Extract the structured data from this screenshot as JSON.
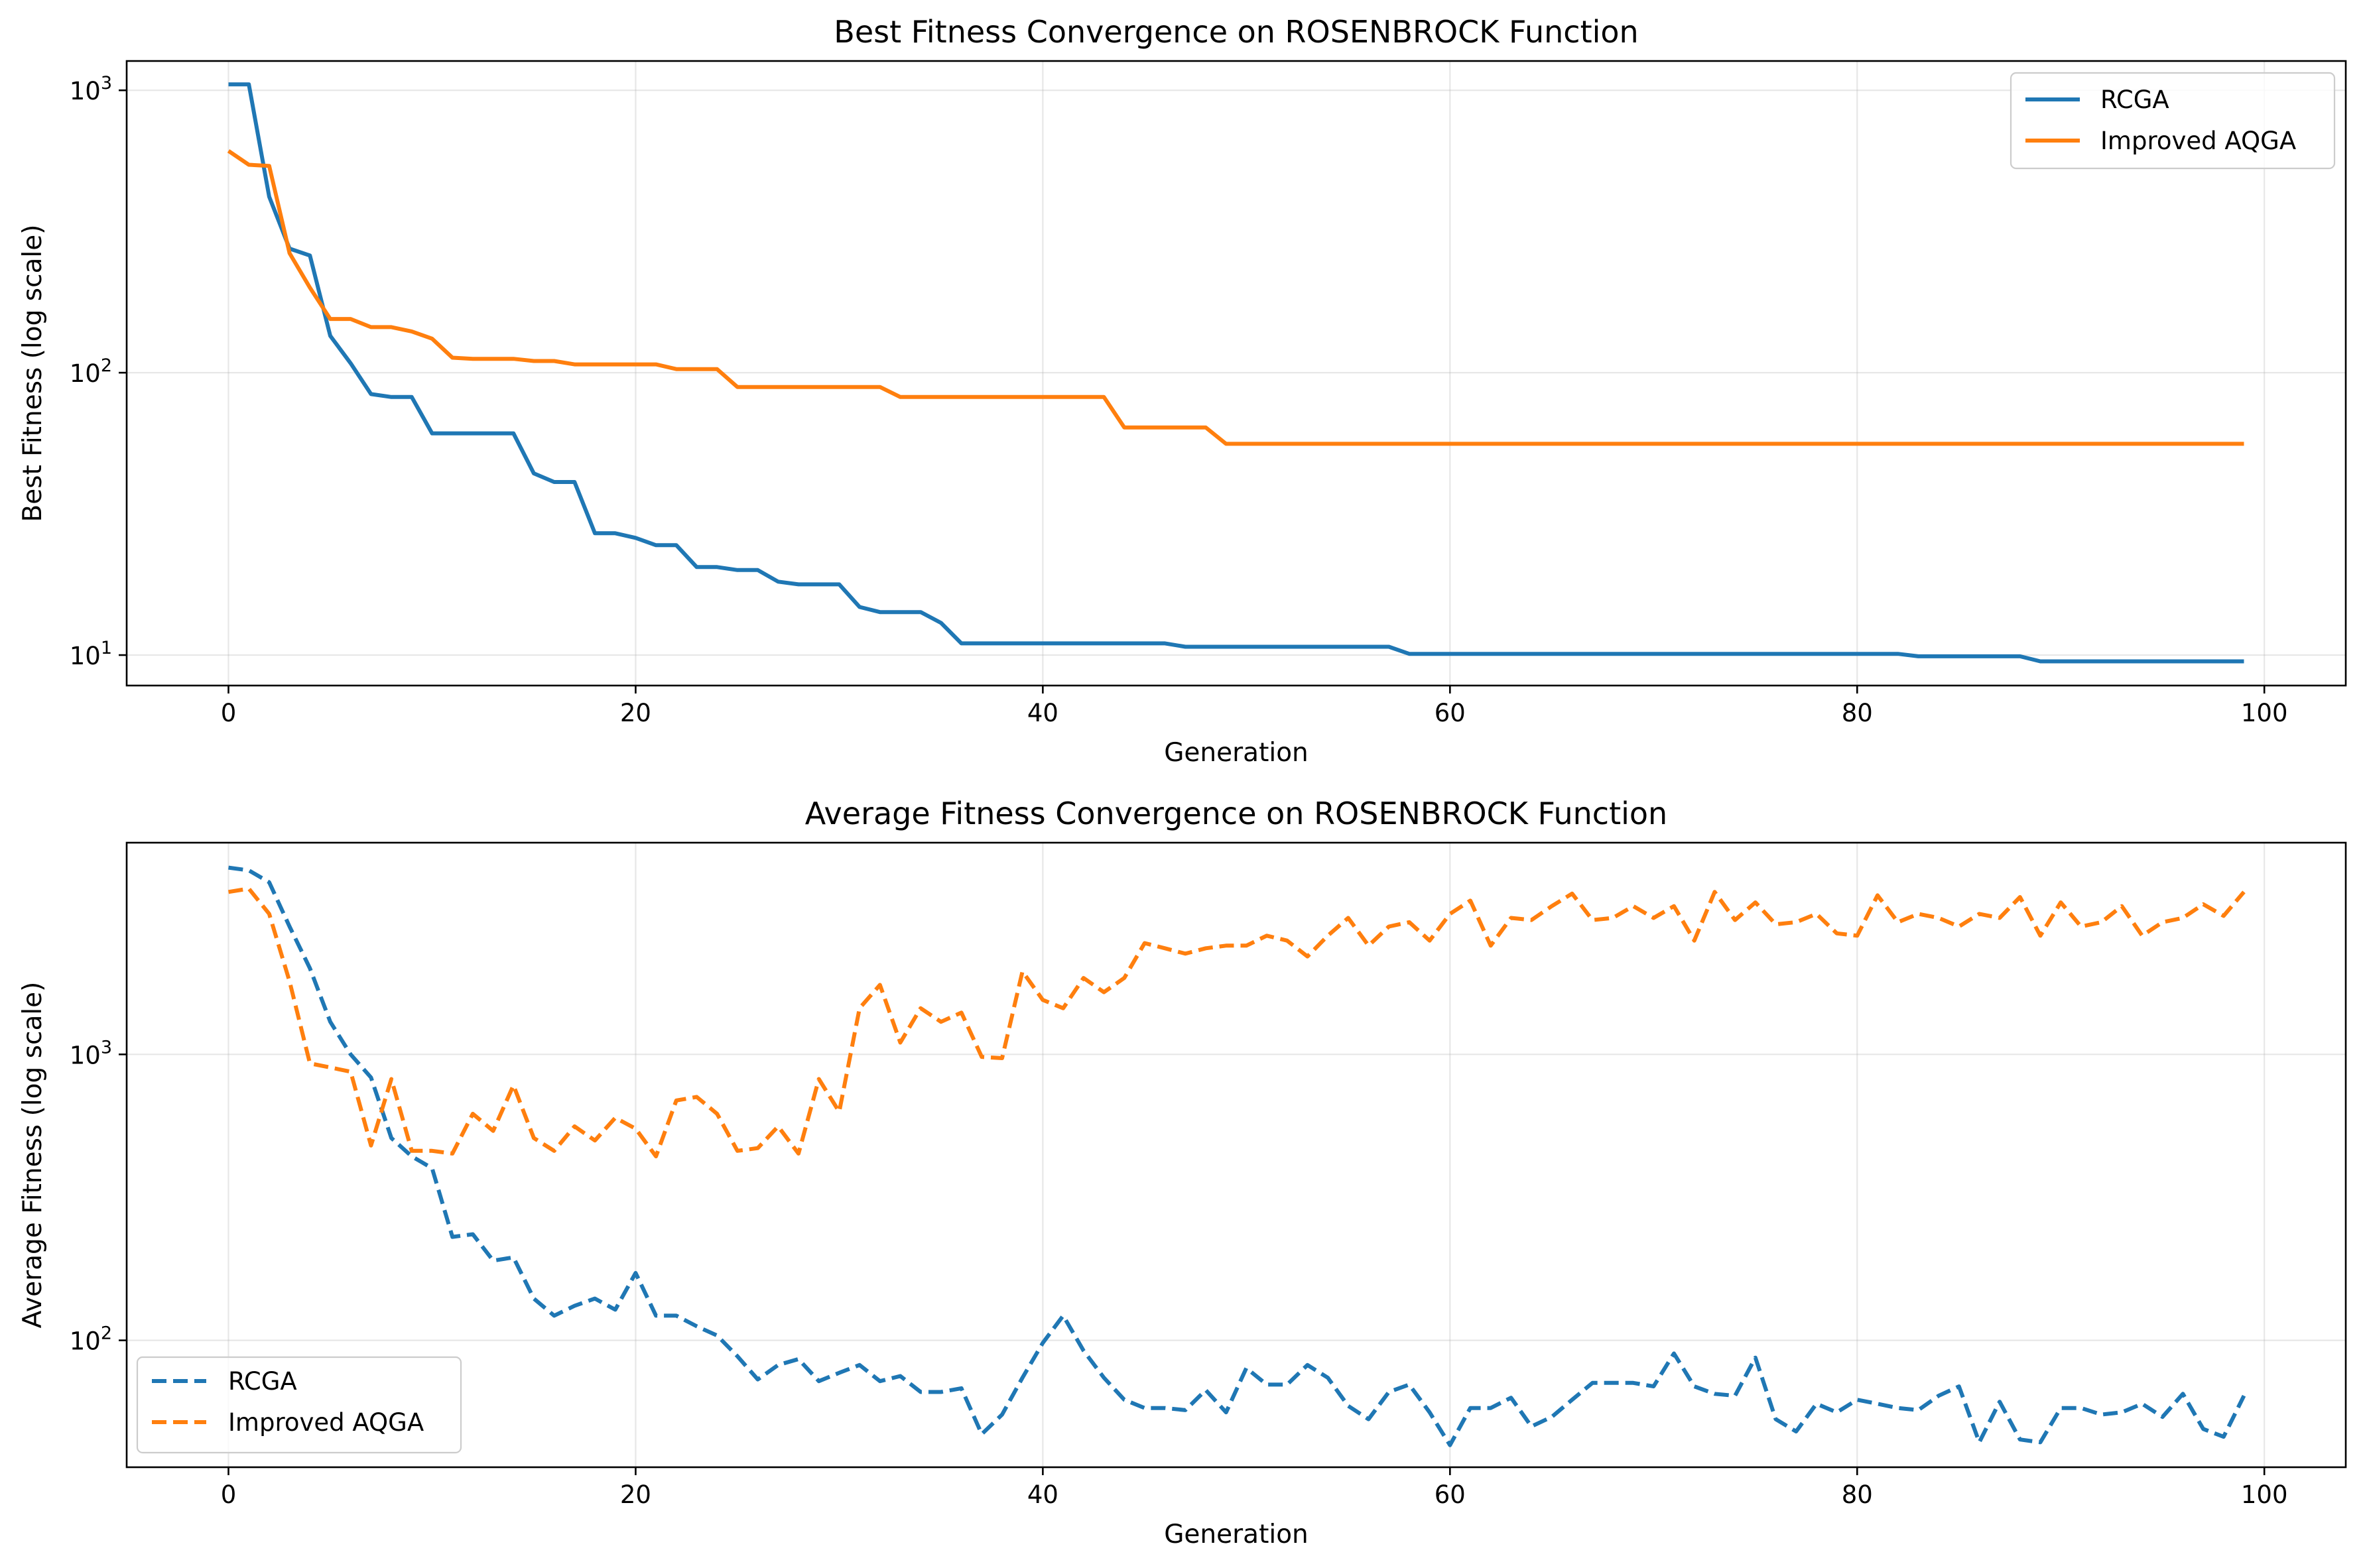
{
  "chart_data": [
    {
      "type": "line",
      "title": "Best Fitness Convergence on ROSENBROCK Function",
      "xlabel": "Generation",
      "ylabel": "Best Fitness (log scale)",
      "yscale": "log",
      "xlim": [
        -5,
        104
      ],
      "ylim": [
        7.8,
        1270
      ],
      "xticks": [
        0,
        20,
        40,
        60,
        80,
        100
      ],
      "xtick_labels": [
        "0",
        "20",
        "40",
        "60",
        "80",
        "100"
      ],
      "yticks": [
        10,
        100,
        1000
      ],
      "ytick_labels": [
        {
          "base": "10",
          "exp": "1"
        },
        {
          "base": "10",
          "exp": "2"
        },
        {
          "base": "10",
          "exp": "3"
        }
      ],
      "grid": true,
      "legend": "top-right",
      "series": [
        {
          "name": "RCGA",
          "color": "#1f77b4",
          "dash": "solid",
          "x": [
            0,
            1,
            2,
            3,
            4,
            5,
            6,
            7,
            8,
            9,
            10,
            11,
            12,
            13,
            14,
            15,
            16,
            17,
            18,
            19,
            20,
            21,
            22,
            23,
            24,
            25,
            26,
            27,
            28,
            29,
            30,
            31,
            32,
            33,
            34,
            35,
            36,
            37,
            38,
            39,
            40,
            41,
            42,
            43,
            44,
            45,
            46,
            47,
            48,
            49,
            50,
            51,
            52,
            53,
            54,
            55,
            56,
            57,
            58,
            59,
            60,
            61,
            62,
            63,
            64,
            65,
            66,
            67,
            68,
            69,
            70,
            71,
            72,
            73,
            74,
            75,
            76,
            77,
            78,
            79,
            80,
            81,
            82,
            83,
            84,
            85,
            86,
            87,
            88,
            89,
            90,
            91,
            92,
            93,
            94,
            95,
            96,
            97,
            98,
            99
          ],
          "y": [
            1050,
            1050,
            420,
            275,
            260,
            135,
            108,
            84,
            82,
            82,
            61,
            61,
            61,
            61,
            61,
            44,
            41,
            41,
            27,
            27,
            26,
            24.5,
            24.5,
            20.5,
            20.5,
            20,
            20,
            18.2,
            17.8,
            17.8,
            17.8,
            14.8,
            14.2,
            14.2,
            14.2,
            13,
            11,
            11,
            11,
            11,
            11,
            11,
            11,
            11,
            11,
            11,
            11,
            10.7,
            10.7,
            10.7,
            10.7,
            10.7,
            10.7,
            10.7,
            10.7,
            10.7,
            10.7,
            10.7,
            10.1,
            10.1,
            10.1,
            10.1,
            10.1,
            10.1,
            10.1,
            10.1,
            10.1,
            10.1,
            10.1,
            10.1,
            10.1,
            10.1,
            10.1,
            10.1,
            10.1,
            10.1,
            10.1,
            10.1,
            10.1,
            10.1,
            10.1,
            10.1,
            10.1,
            9.9,
            9.9,
            9.9,
            9.9,
            9.9,
            9.9,
            9.5,
            9.5,
            9.5,
            9.5,
            9.5,
            9.5,
            9.5,
            9.5,
            9.5,
            9.5,
            9.5
          ]
        },
        {
          "name": "Improved AQGA",
          "color": "#ff7f0e",
          "dash": "solid",
          "x": [
            0,
            1,
            2,
            3,
            4,
            5,
            6,
            7,
            8,
            9,
            10,
            11,
            12,
            13,
            14,
            15,
            16,
            17,
            18,
            19,
            20,
            21,
            22,
            23,
            24,
            25,
            26,
            27,
            28,
            29,
            30,
            31,
            32,
            33,
            34,
            35,
            36,
            37,
            38,
            39,
            40,
            41,
            42,
            43,
            44,
            45,
            46,
            47,
            48,
            49,
            50,
            51,
            52,
            53,
            54,
            55,
            56,
            57,
            58,
            59,
            60,
            61,
            62,
            63,
            64,
            65,
            66,
            67,
            68,
            69,
            70,
            71,
            72,
            73,
            74,
            75,
            76,
            77,
            78,
            79,
            80,
            81,
            82,
            83,
            84,
            85,
            86,
            87,
            88,
            89,
            90,
            91,
            92,
            93,
            94,
            95,
            96,
            97,
            98,
            99
          ],
          "y": [
            610,
            545,
            540,
            265,
            200,
            155,
            155,
            145,
            145,
            140,
            132,
            113,
            112,
            112,
            112,
            110,
            110,
            107,
            107,
            107,
            107,
            107,
            103,
            103,
            103,
            89,
            89,
            89,
            89,
            89,
            89,
            89,
            89,
            82,
            82,
            82,
            82,
            82,
            82,
            82,
            82,
            82,
            82,
            82,
            64,
            64,
            64,
            64,
            64,
            56,
            56,
            56,
            56,
            56,
            56,
            56,
            56,
            56,
            56,
            56,
            56,
            56,
            56,
            56,
            56,
            56,
            56,
            56,
            56,
            56,
            56,
            56,
            56,
            56,
            56,
            56,
            56,
            56,
            56,
            56,
            56,
            56,
            56,
            56,
            56,
            56,
            56,
            56,
            56,
            56,
            56,
            56,
            56,
            56,
            56,
            56,
            56,
            56,
            56,
            56
          ]
        }
      ]
    },
    {
      "type": "line",
      "title": "Average Fitness Convergence on ROSENBROCK Function",
      "xlabel": "Generation",
      "ylabel": "Average Fitness (log scale)",
      "yscale": "log",
      "xlim": [
        -5,
        104
      ],
      "ylim": [
        36,
        5500
      ],
      "xticks": [
        0,
        20,
        40,
        60,
        80,
        100
      ],
      "xtick_labels": [
        "0",
        "20",
        "40",
        "60",
        "80",
        "100"
      ],
      "yticks": [
        100,
        1000
      ],
      "ytick_labels": [
        {
          "base": "10",
          "exp": "2"
        },
        {
          "base": "10",
          "exp": "3"
        }
      ],
      "grid": true,
      "legend": "bottom-left",
      "series": [
        {
          "name": "RCGA",
          "color": "#1f77b4",
          "dash": "dashed",
          "x": [
            0,
            1,
            2,
            3,
            4,
            5,
            6,
            7,
            8,
            9,
            10,
            11,
            12,
            13,
            14,
            15,
            16,
            17,
            18,
            19,
            20,
            21,
            22,
            23,
            24,
            25,
            26,
            27,
            28,
            29,
            30,
            31,
            32,
            33,
            34,
            35,
            36,
            37,
            38,
            39,
            40,
            41,
            42,
            43,
            44,
            45,
            46,
            47,
            48,
            49,
            50,
            51,
            52,
            53,
            54,
            55,
            56,
            57,
            58,
            59,
            60,
            61,
            62,
            63,
            64,
            65,
            66,
            67,
            68,
            69,
            70,
            71,
            72,
            73,
            74,
            75,
            76,
            77,
            78,
            79,
            80,
            81,
            82,
            83,
            84,
            85,
            86,
            87,
            88,
            89,
            90,
            91,
            92,
            93,
            94,
            95,
            96,
            97,
            98,
            99
          ],
          "y": [
            4500,
            4400,
            4000,
            2800,
            2000,
            1300,
            1000,
            830,
            510,
            440,
            400,
            230,
            235,
            190,
            195,
            140,
            122,
            132,
            140,
            128,
            172,
            122,
            122,
            112,
            104,
            88,
            73,
            82,
            86,
            72,
            77,
            82,
            72,
            75,
            66,
            66,
            68,
            47,
            55,
            74,
            98,
            122,
            92,
            74,
            62,
            58,
            58,
            57,
            67,
            56,
            80,
            70,
            70,
            82,
            74,
            59,
            53,
            66,
            70,
            56,
            43,
            58,
            58,
            63,
            50,
            54,
            62,
            71,
            71,
            71,
            69,
            90,
            69,
            65,
            64,
            87,
            53,
            48,
            60,
            56,
            62,
            60,
            58,
            57,
            64,
            69,
            44,
            61,
            45,
            44,
            58,
            58,
            55,
            56,
            60,
            54,
            65,
            49,
            46,
            64
          ]
        },
        {
          "name": "Improved AQGA",
          "color": "#ff7f0e",
          "dash": "dashed",
          "x": [
            0,
            1,
            2,
            3,
            4,
            5,
            6,
            7,
            8,
            9,
            10,
            11,
            12,
            13,
            14,
            15,
            16,
            17,
            18,
            19,
            20,
            21,
            22,
            23,
            24,
            25,
            26,
            27,
            28,
            29,
            30,
            31,
            32,
            33,
            34,
            35,
            36,
            37,
            38,
            39,
            40,
            41,
            42,
            43,
            44,
            45,
            46,
            47,
            48,
            49,
            50,
            51,
            52,
            53,
            54,
            55,
            56,
            57,
            58,
            59,
            60,
            61,
            62,
            63,
            64,
            65,
            66,
            67,
            68,
            69,
            70,
            71,
            72,
            73,
            74,
            75,
            76,
            77,
            78,
            79,
            80,
            81,
            82,
            83,
            84,
            85,
            86,
            87,
            88,
            89,
            90,
            91,
            92,
            93,
            94,
            95,
            96,
            97,
            98,
            99
          ],
          "y": [
            3700,
            3800,
            3100,
            1800,
            930,
            900,
            870,
            480,
            820,
            460,
            460,
            450,
            620,
            540,
            780,
            510,
            460,
            560,
            500,
            600,
            550,
            440,
            690,
            710,
            620,
            460,
            470,
            560,
            450,
            820,
            630,
            1450,
            1750,
            1100,
            1450,
            1300,
            1400,
            980,
            970,
            1950,
            1550,
            1450,
            1850,
            1650,
            1850,
            2450,
            2350,
            2250,
            2350,
            2400,
            2400,
            2600,
            2500,
            2200,
            2600,
            3000,
            2400,
            2800,
            2900,
            2500,
            3100,
            3450,
            2400,
            3000,
            2950,
            3300,
            3650,
            2950,
            3000,
            3300,
            3000,
            3300,
            2500,
            3700,
            2950,
            3400,
            2850,
            2900,
            3100,
            2650,
            2600,
            3600,
            2900,
            3100,
            3000,
            2800,
            3100,
            3000,
            3550,
            2600,
            3400,
            2800,
            2900,
            3300,
            2600,
            2900,
            3000,
            3350,
            3050,
            3700
          ]
        }
      ]
    }
  ]
}
